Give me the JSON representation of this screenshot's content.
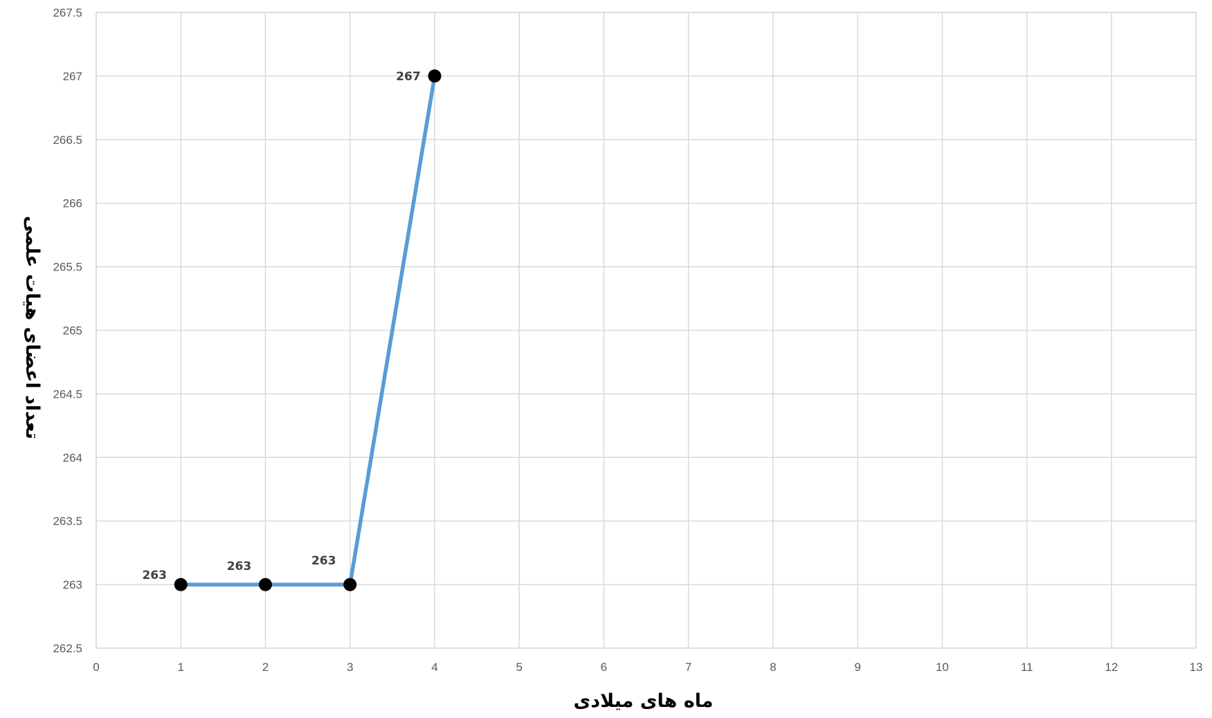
{
  "chart_data": {
    "type": "scatter",
    "title": "",
    "xlabel": "ماه های میلادی",
    "ylabel": "تعداد اعضای هیات علمی",
    "xlim": [
      0,
      13
    ],
    "ylim": [
      262.5,
      267.5
    ],
    "x_ticks": [
      "0",
      "1",
      "2",
      "3",
      "4",
      "5",
      "6",
      "7",
      "8",
      "9",
      "10",
      "11",
      "12",
      "13"
    ],
    "y_ticks": [
      "262.5",
      "263",
      "263.5",
      "264",
      "264.5",
      "265",
      "265.5",
      "266",
      "266.5",
      "267",
      "267.5"
    ],
    "grid": true,
    "legend": "none",
    "series": [
      {
        "x": [
          1,
          2,
          3,
          4
        ],
        "y": [
          263,
          263,
          263,
          267
        ],
        "data_labels": [
          "263",
          "263",
          "263",
          "267"
        ],
        "line_color": "#5b9bd5",
        "marker_color": "#000000"
      }
    ]
  }
}
